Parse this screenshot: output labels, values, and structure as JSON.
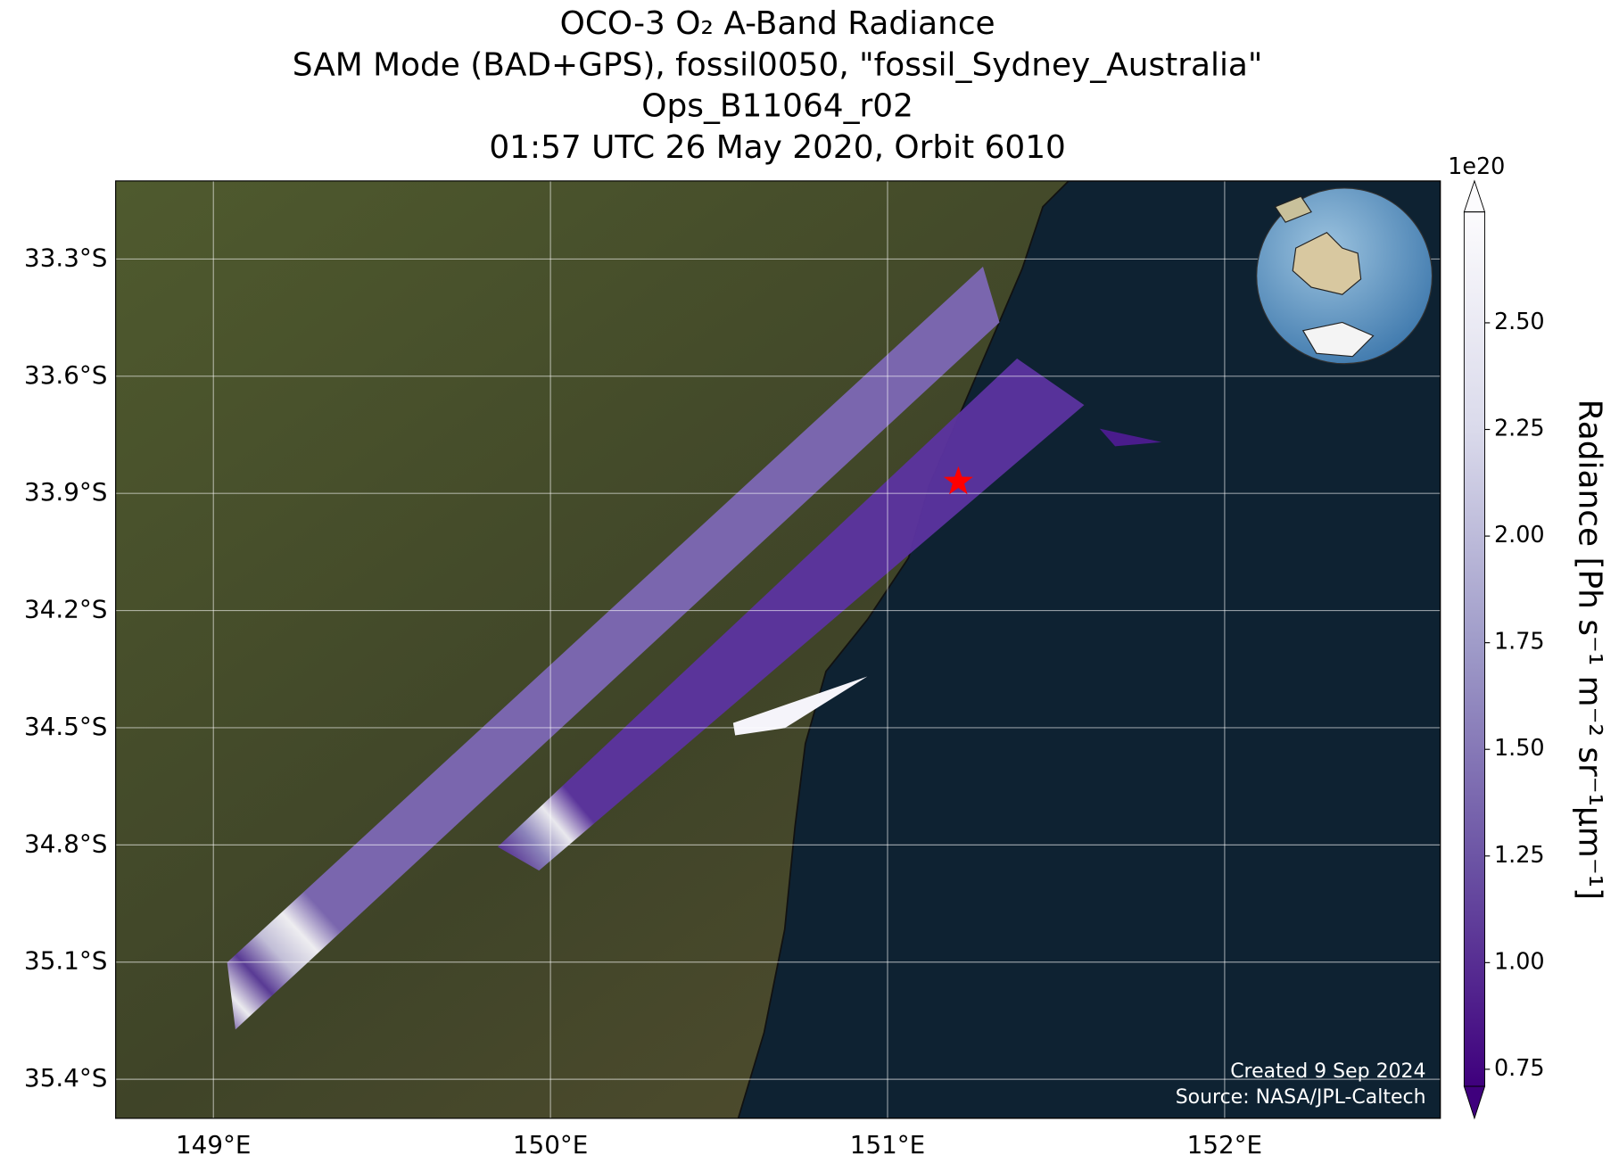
{
  "chart_data": {
    "type": "map",
    "title": [
      "OCO-3 O₂ A-Band Radiance",
      "SAM Mode (BAD+GPS), fossil0050, \"fossil_Sydney_Australia\"",
      "Ops_B11064_r02",
      "01:57 UTC 26 May 2020, Orbit 6010"
    ],
    "xlim": [
      148.71,
      152.64
    ],
    "ylim": [
      -35.5,
      -33.1
    ],
    "xticks": [
      {
        "value": 149,
        "label": "149°E"
      },
      {
        "value": 150,
        "label": "150°E"
      },
      {
        "value": 151,
        "label": "151°E"
      },
      {
        "value": 152,
        "label": "152°E"
      }
    ],
    "yticks": [
      {
        "value": -33.3,
        "label": "33.3°S"
      },
      {
        "value": -33.6,
        "label": "33.6°S"
      },
      {
        "value": -33.9,
        "label": "33.9°S"
      },
      {
        "value": -34.2,
        "label": "34.2°S"
      },
      {
        "value": -34.5,
        "label": "34.5°S"
      },
      {
        "value": -34.8,
        "label": "34.8°S"
      },
      {
        "value": -35.1,
        "label": "35.1°S"
      },
      {
        "value": -35.4,
        "label": "35.4°S"
      }
    ],
    "grid": true,
    "target": {
      "lon": 151.21,
      "lat": -33.87,
      "color": "#ff0000"
    },
    "colorbar": {
      "label": "Radiance [Ph s⁻¹ m⁻² sr⁻¹μm⁻¹]",
      "offset_label": "1e20",
      "lim": [
        0.71,
        2.76
      ],
      "ticks": [
        {
          "value": 0.75,
          "label": "0.75"
        },
        {
          "value": 1,
          "label": "1.00"
        },
        {
          "value": 1.25,
          "label": "1.25"
        },
        {
          "value": 1.5,
          "label": "1.50"
        },
        {
          "value": 1.75,
          "label": "1.75"
        },
        {
          "value": 2,
          "label": "2.00"
        },
        {
          "value": 2.25,
          "label": "2.25"
        },
        {
          "value": 2.5,
          "label": "2.50"
        }
      ],
      "colormap": [
        "#3f007d",
        "#6a51a3",
        "#9e9ac8",
        "#dadaeb",
        "#fcfbfd"
      ]
    },
    "credits": [
      "Created 9 Sep 2024",
      "Source: NASA/JPL-Caltech"
    ]
  }
}
